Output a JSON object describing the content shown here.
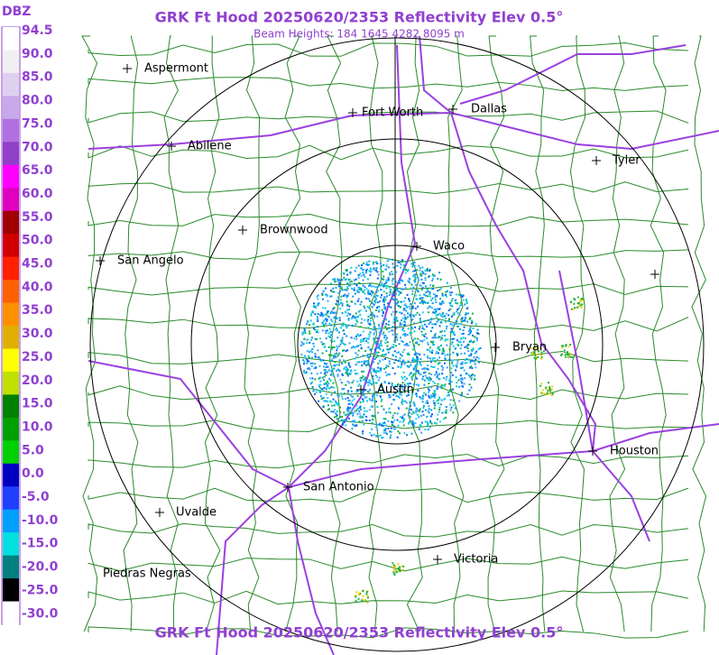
{
  "header": {
    "title": "GRK Ft Hood 20250620/2353 Reflectivity Elev 0.5°",
    "subtitle": "Beam Heights: 184 1645 4282 8095 m"
  },
  "legend": {
    "unit": "DBZ",
    "labels": [
      "94.5",
      "90.0",
      "85.0",
      "80.0",
      "75.0",
      "70.0",
      "65.0",
      "60.0",
      "55.0",
      "50.0",
      "45.0",
      "40.0",
      "35.0",
      "30.0",
      "25.0",
      "20.0",
      "15.0",
      "10.0",
      "5.0",
      "0.0",
      "-5.0",
      "-10.0",
      "-15.0",
      "-20.0",
      "-25.0",
      "-30.0"
    ]
  },
  "cities": [
    {
      "label": "Aspermont"
    },
    {
      "label": "Fort Worth"
    },
    {
      "label": "Dallas"
    },
    {
      "label": "Abilene"
    },
    {
      "label": "Tyler"
    },
    {
      "label": "Brownwood"
    },
    {
      "label": "Waco"
    },
    {
      "label": "San Angelo"
    },
    {
      "label": "Bryan"
    },
    {
      "label": "Austin"
    },
    {
      "label": "Houston"
    },
    {
      "label": "San Antonio"
    },
    {
      "label": "Uvalde"
    },
    {
      "label": "Victoria"
    },
    {
      "label": "Piedras Negras"
    }
  ],
  "footer": {
    "title": "GRK Ft Hood 20250620/2353 Reflectivity Elev 0.5°"
  }
}
